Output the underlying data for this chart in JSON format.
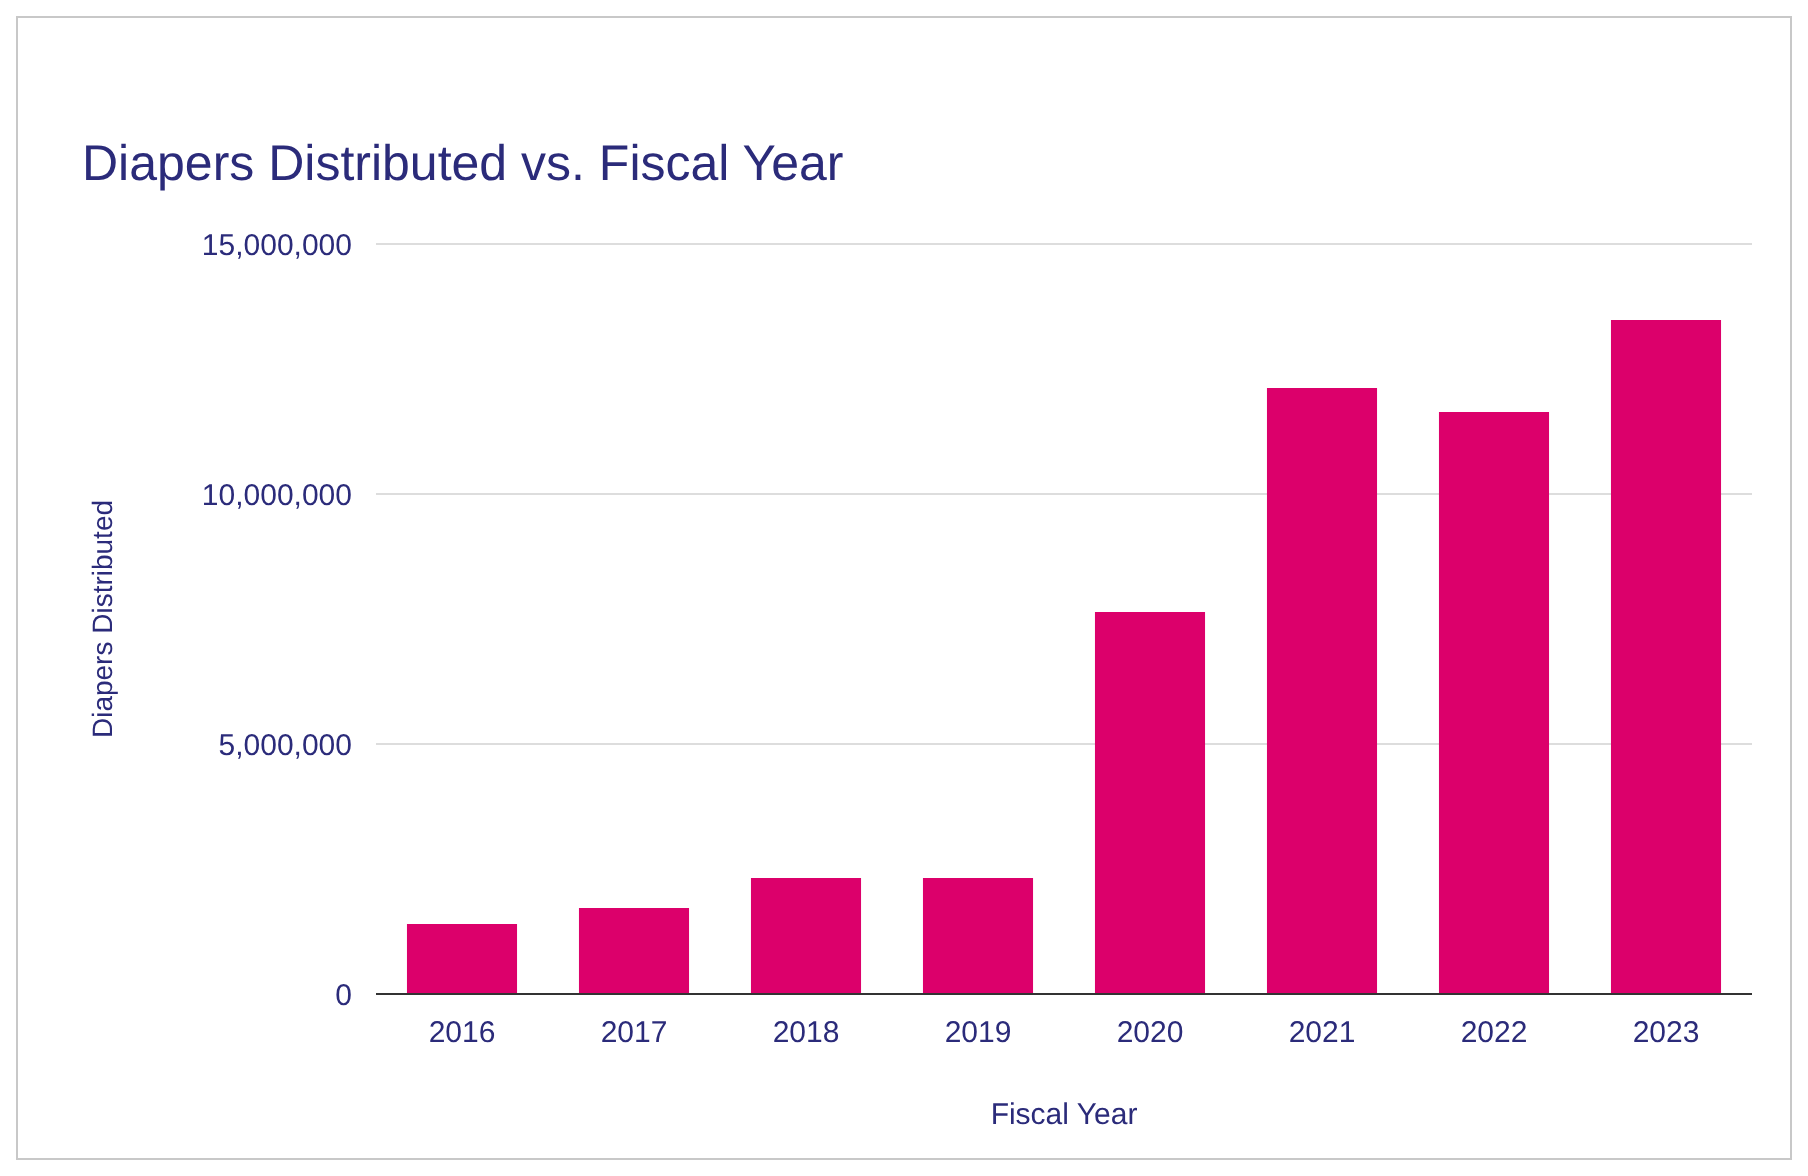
{
  "chart_data": {
    "type": "bar",
    "title": "Diapers Distributed vs. Fiscal Year",
    "xlabel": "Fiscal Year",
    "ylabel": "Diapers Distributed",
    "categories": [
      "2016",
      "2017",
      "2018",
      "2019",
      "2020",
      "2021",
      "2022",
      "2023"
    ],
    "values": [
      1400000,
      1720000,
      2320000,
      2320000,
      7640000,
      12120000,
      11640000,
      13480000
    ],
    "color": "#dc006b",
    "ylim": [
      0,
      15000000
    ],
    "yticks": [
      {
        "value": 0,
        "label": "0"
      },
      {
        "value": 5000000,
        "label": "5,000,000"
      },
      {
        "value": 10000000,
        "label": "10,000,000"
      },
      {
        "value": 15000000,
        "label": "15,000,000"
      }
    ],
    "grid": "y"
  }
}
